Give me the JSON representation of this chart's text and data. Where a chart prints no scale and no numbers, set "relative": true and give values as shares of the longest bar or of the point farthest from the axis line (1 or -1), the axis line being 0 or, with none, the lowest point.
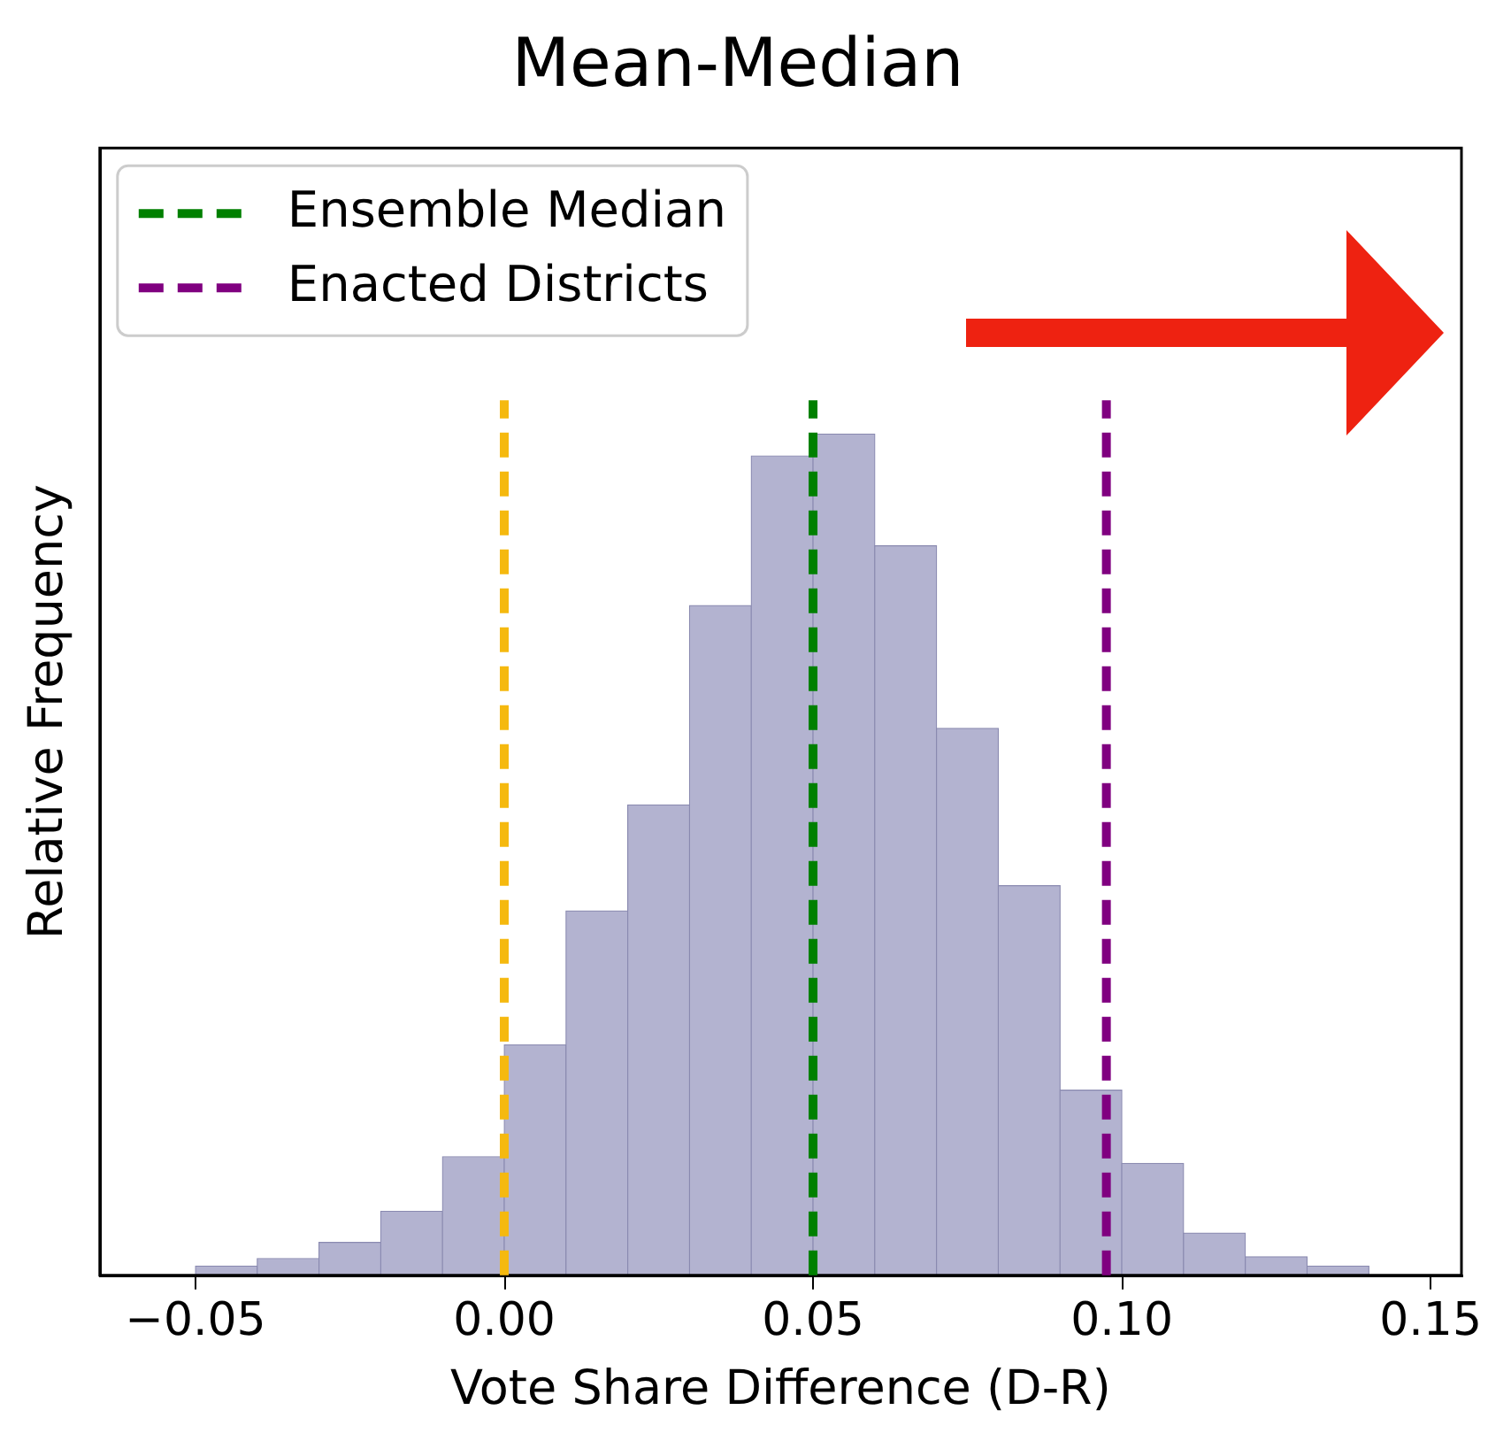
{
  "chart_data": {
    "type": "bar",
    "title": "Mean-Median",
    "xlabel": "Vote Share Difference (D-R)",
    "ylabel": "Relative Frequency",
    "relative": true,
    "color": "#b3b3d0",
    "x": [
      -0.045,
      -0.035,
      -0.025,
      -0.015,
      -0.005,
      0.005,
      0.015,
      0.025,
      0.035,
      0.045,
      0.055,
      0.065,
      0.075,
      0.085,
      0.095,
      0.105,
      0.115,
      0.125,
      0.135
    ],
    "values": [
      0.011,
      0.02,
      0.039,
      0.076,
      0.141,
      0.274,
      0.433,
      0.559,
      0.796,
      0.974,
      1,
      0.867,
      0.65,
      0.463,
      0.22,
      0.133,
      0.05,
      0.022,
      0.011
    ],
    "xlim": [
      -0.0655,
      0.155
    ],
    "xticks": [
      {
        "value": -0.05,
        "label": "−0.05"
      },
      {
        "value": 0,
        "label": "0.00"
      },
      {
        "value": 0.05,
        "label": "0.05"
      },
      {
        "value": 0.1,
        "label": "0.10"
      },
      {
        "value": 0.15,
        "label": "0.15"
      }
    ],
    "ref_lines": [
      {
        "axis": "x",
        "value": 0,
        "color": "#f5b90f",
        "line_style": "dashed"
      },
      {
        "axis": "x",
        "value": 0.05,
        "label": "Ensemble Median",
        "color": "#008000",
        "line_style": "dashed"
      },
      {
        "axis": "x",
        "value": 0.0975,
        "label": "Enacted Districts",
        "color": "#800080",
        "line_style": "dashed"
      }
    ],
    "legend": "top left",
    "grid": false
  }
}
